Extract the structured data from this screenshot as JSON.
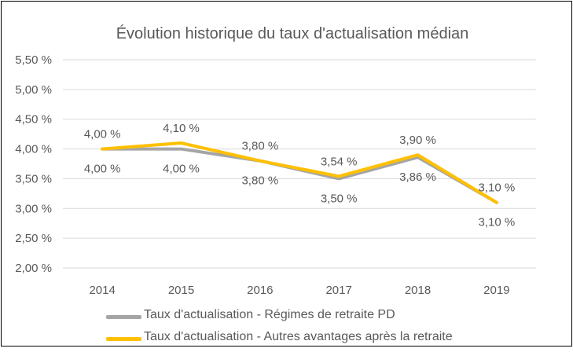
{
  "chart_data": {
    "type": "line",
    "title": "Évolution historique du taux d'actualisation médian",
    "xlabel": "",
    "ylabel": "",
    "categories": [
      "2014",
      "2015",
      "2016",
      "2017",
      "2018",
      "2019"
    ],
    "ylim": [
      2.0,
      5.5
    ],
    "yticks": [
      2.0,
      2.5,
      3.0,
      3.5,
      4.0,
      4.5,
      5.0,
      5.5
    ],
    "ytick_labels": [
      "2,00 %",
      "2,50 %",
      "3,00 %",
      "3,50 %",
      "4,00 %",
      "4,50 %",
      "5,00 %",
      "5,50 %"
    ],
    "grid": true,
    "legend_position": "bottom",
    "series": [
      {
        "name": "Taux d'actualisation - Régimes de retraite PD",
        "color": "#A5A5A5",
        "values": [
          4.0,
          4.0,
          3.8,
          3.5,
          3.86,
          3.1
        ],
        "labels": [
          "4,00 %",
          "4,00 %",
          "3,80 %",
          "3,50 %",
          "3,86 %",
          "3,10 %"
        ],
        "label_position": "below"
      },
      {
        "name": "Taux d'actualisation - Autres avantages après la retraite",
        "color": "#FFC000",
        "values": [
          4.0,
          4.1,
          3.8,
          3.54,
          3.9,
          3.1
        ],
        "labels": [
          "4,00 %",
          "4,10 %",
          "3,80 %",
          "3,54 %",
          "3,90 %",
          "3,10 %"
        ],
        "label_position": "above"
      }
    ]
  }
}
